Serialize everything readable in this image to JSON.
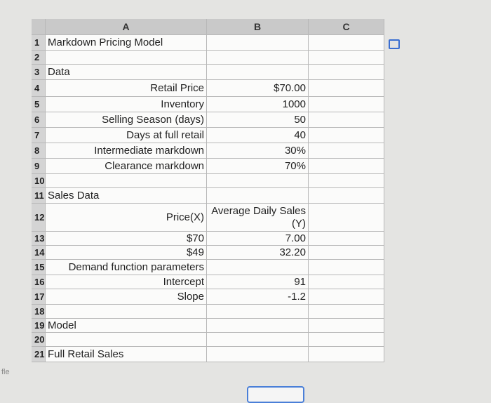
{
  "columns": [
    "A",
    "B",
    "C"
  ],
  "rows": [
    {
      "number": 1,
      "A": "Markdown Pricing Model"
    },
    {
      "number": 2
    },
    {
      "number": 3,
      "A": "Data"
    },
    {
      "number": 4,
      "A": "Retail Price",
      "B": "$70.00"
    },
    {
      "number": 5,
      "A": "Inventory",
      "B": "1000"
    },
    {
      "number": 6,
      "A": "Selling Season (days)",
      "B": "50"
    },
    {
      "number": 7,
      "A": "Days at full retail",
      "B": "40"
    },
    {
      "number": 8,
      "A": "Intermediate markdown",
      "B": "30%"
    },
    {
      "number": 9,
      "A": "Clearance markdown",
      "B": "70%"
    },
    {
      "number": 10
    },
    {
      "number": 11,
      "A": "Sales Data"
    },
    {
      "number": 12,
      "A": "Price(X)",
      "B": "Average Daily Sales (Y)"
    },
    {
      "number": 13,
      "A": "$70",
      "B": "7.00"
    },
    {
      "number": 14,
      "A": "$49",
      "B": "32.20"
    },
    {
      "number": 15,
      "A": "Demand function parameters"
    },
    {
      "number": 16,
      "A": "Intercept",
      "B": "91"
    },
    {
      "number": 17,
      "A": "Slope",
      "B": "-1.2"
    },
    {
      "number": 18
    },
    {
      "number": 19,
      "A": "Model"
    },
    {
      "number": 20
    },
    {
      "number": 21,
      "A": "Full Retail Sales"
    }
  ],
  "side_text": "fle"
}
